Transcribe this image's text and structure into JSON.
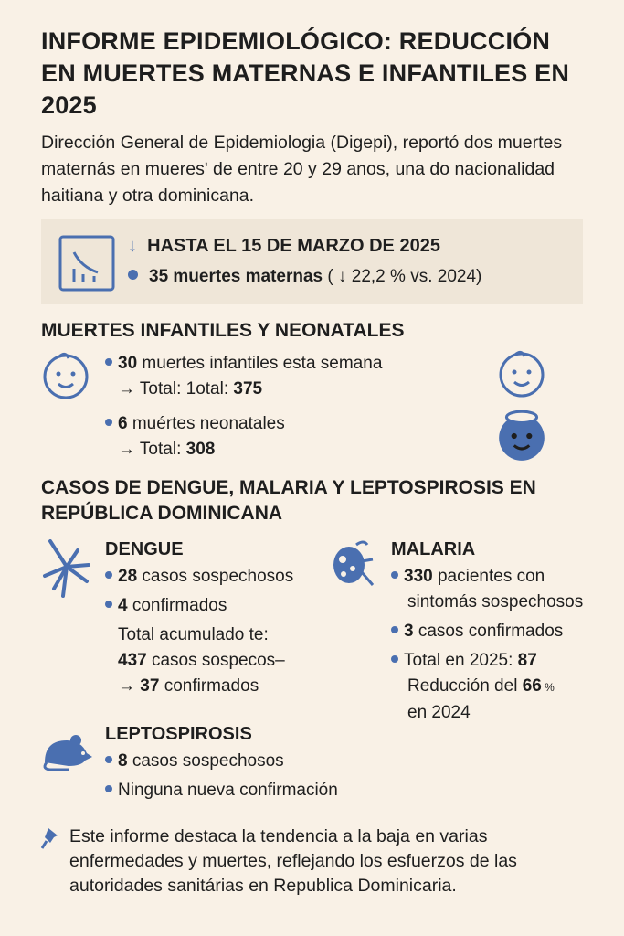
{
  "title": "INFORME EPIDEMIOLÓGICO: REDUCCIÓN EN MUERTES MATERNAS E INFANTILES EN 2025",
  "intro": "Dirección General de Epidemiologia (Digepi), reportó dos muertes maternás en mueresʹ de entre 20 y 29 anos, una do nacionalidad haitiana y otra dominicana.",
  "callout": {
    "arrow": "↓",
    "heading": "HASTA EL 15 DE MARZO DE 2025",
    "stat_bold": "35 muertes maternas",
    "stat_rest": " ( ↓ 22,2 % vs. 2024)",
    "icon": "declining-chart-icon"
  },
  "infant": {
    "heading": "MUERTES INFANTILES Y NEONATALES",
    "items": [
      {
        "num": "30",
        "text": " muertes infantiles esta semana",
        "sub_pre": "→ Total: 1otal: ",
        "sub_num": "375"
      },
      {
        "num": "6",
        "text": " muértes neonatales",
        "sub_pre": "→ Total: ",
        "sub_num": "308"
      }
    ],
    "icons": [
      "baby-face-icon",
      "baby-face-icon",
      "neonate-face-icon"
    ]
  },
  "diseases": {
    "heading": "CASOS DE DENGUE, MALARIA Y LEPTOSPIROSIS EN REPÚBLICA DOMINICANA",
    "dengue": {
      "title": "DENGUE",
      "b1_num": "28",
      "b1_text": " casos sospechosos",
      "b2_num": "4",
      "b2_text": " confirmados",
      "t1": "Total acumulado te:",
      "t2_num": "437",
      "t2_text": " casos sospecos–",
      "t3_pre": "→ ",
      "t3_num": "37",
      "t3_text": " confirmados"
    },
    "malaria": {
      "title": "MALARIA",
      "b1_num": "330",
      "b1_text": " pacientes con",
      "b1_line2": "sintomás sospechosos",
      "b2_num": "3",
      "b2_text": " casos confirmados",
      "b3_pre": "Total en 2025: ",
      "b3_num": "87",
      "b3_line2_pre": "Reducción del ",
      "b3_line2_num": "66",
      "b3_line2_pct": " %",
      "b3_line3": "en 2024"
    },
    "lepto": {
      "title": "LEPTOSPIROSIS",
      "b1_num": "8",
      "b1_text": " casos sospechosos",
      "b2_text": "Ninguna nueva confirmación"
    }
  },
  "footer": "Este informe destaca la tendencia a la baja en varias enfermedades y muertes, reflejando los esfuerzos de las autoridades sanitárias en Republica Dominicaria.",
  "colors": {
    "background": "#f9f1e6",
    "accent": "#4a6fb0",
    "callout": "#efe6d8"
  }
}
